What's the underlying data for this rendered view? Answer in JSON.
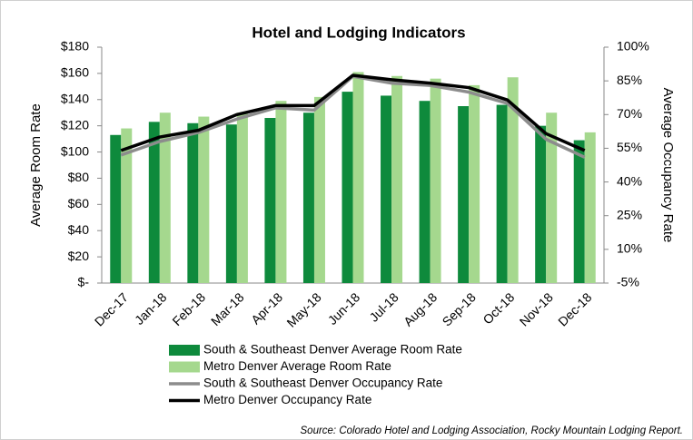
{
  "chart_data": {
    "type": "bar_line",
    "title": "Hotel and Lodging Indicators",
    "y_label": "Average Room Rate",
    "y2_label": "Average Occupancy Rate",
    "source": "Source: Colorado Hotel and Lodging Association, Rocky Mountain Lodging Report.",
    "categories": [
      "Dec-17",
      "Jan-18",
      "Feb-18",
      "Mar-18",
      "Apr-18",
      "May-18",
      "Jun-18",
      "Jul-18",
      "Aug-18",
      "Sep-18",
      "Oct-18",
      "Nov-18",
      "Dec-18"
    ],
    "series": [
      {
        "name": "South & Southeast Denver Average Room Rate",
        "kind": "bar",
        "color": "#0e8a3c",
        "values": [
          113,
          123,
          122,
          121,
          126,
          130,
          146,
          143,
          139,
          135,
          136,
          120,
          109
        ]
      },
      {
        "name": "Metro Denver Average Room Rate",
        "kind": "bar",
        "color": "#a5d88e",
        "values": [
          118,
          130,
          127,
          130,
          139,
          142,
          161,
          158,
          156,
          151,
          157,
          130,
          115
        ]
      },
      {
        "name": "South & Southeast Denver Occupancy Rate",
        "kind": "line",
        "axis": "y2",
        "color": "#8c8c8c",
        "values": [
          52,
          58,
          62,
          68,
          73,
          72,
          87,
          84,
          83,
          80,
          75,
          59,
          51
        ]
      },
      {
        "name": "Metro Denver Occupancy Rate",
        "kind": "line",
        "axis": "y2",
        "color": "#000000",
        "values": [
          54,
          60,
          63,
          70,
          74,
          74,
          87.5,
          85.5,
          84,
          82,
          76.5,
          61.5,
          54
        ]
      }
    ],
    "ylim": [
      0,
      180
    ],
    "yticks": [
      {
        "value": 0,
        "label": "$-"
      },
      {
        "value": 20,
        "label": "$20"
      },
      {
        "value": 40,
        "label": "$40"
      },
      {
        "value": 60,
        "label": "$60"
      },
      {
        "value": 80,
        "label": "$80"
      },
      {
        "value": 100,
        "label": "$100"
      },
      {
        "value": 120,
        "label": "$120"
      },
      {
        "value": 140,
        "label": "$140"
      },
      {
        "value": 160,
        "label": "$160"
      },
      {
        "value": 180,
        "label": "$180"
      }
    ],
    "y2lim": [
      -5,
      100
    ],
    "y2ticks": [
      {
        "value": -5,
        "label": "-5%"
      },
      {
        "value": 10,
        "label": "10%"
      },
      {
        "value": 25,
        "label": "25%"
      },
      {
        "value": 40,
        "label": "40%"
      },
      {
        "value": 55,
        "label": "55%"
      },
      {
        "value": 70,
        "label": "70%"
      },
      {
        "value": 85,
        "label": "85%"
      },
      {
        "value": 100,
        "label": "100%"
      }
    ]
  }
}
